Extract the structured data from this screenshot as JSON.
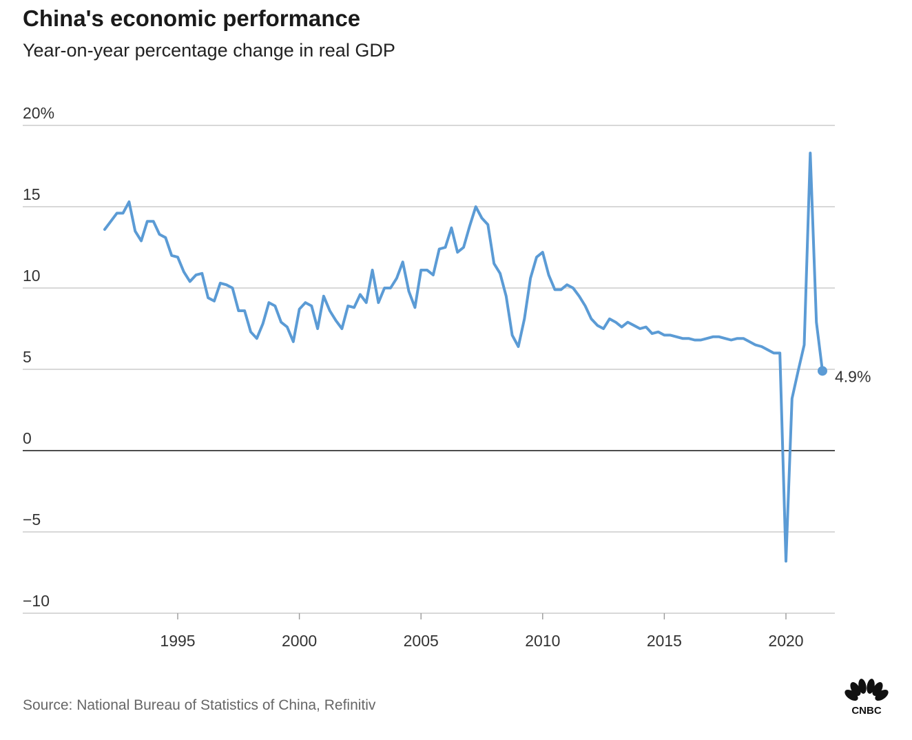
{
  "title": "China's economic performance",
  "subtitle": "Year-on-year percentage change in real GDP",
  "source": "Source: National Bureau of Statistics of China, Refinitiv",
  "logo_text": "CNBC",
  "colors": {
    "line": "#5b9bd5",
    "grid": "#cccccc",
    "zero_line": "#111111"
  },
  "chart_data": {
    "type": "line",
    "title": "China's economic performance",
    "subtitle": "Year-on-year percentage change in real GDP",
    "xlabel": "",
    "ylabel": "",
    "ylim": [
      -10,
      20
    ],
    "y_ticks": [
      {
        "value": 20,
        "label": "20%"
      },
      {
        "value": 15,
        "label": "15"
      },
      {
        "value": 10,
        "label": "10"
      },
      {
        "value": 5,
        "label": "5"
      },
      {
        "value": 0,
        "label": "0"
      },
      {
        "value": -5,
        "label": "−5"
      },
      {
        "value": -10,
        "label": "−10"
      }
    ],
    "x_ticks": [
      {
        "value": 1995,
        "label": "1995"
      },
      {
        "value": 2000,
        "label": "2000"
      },
      {
        "value": 2005,
        "label": "2005"
      },
      {
        "value": 2010,
        "label": "2010"
      },
      {
        "value": 2015,
        "label": "2015"
      },
      {
        "value": 2020,
        "label": "2020"
      }
    ],
    "grid": true,
    "frequency": "quarterly",
    "start": "1992 Q1",
    "end": "2021 Q3",
    "series": [
      {
        "values": [
          13.6,
          14.1,
          14.6,
          14.6,
          15.3,
          13.5,
          12.9,
          14.1,
          14.1,
          13.3,
          13.1,
          12.0,
          11.9,
          11.0,
          10.4,
          10.8,
          10.9,
          9.4,
          9.2,
          10.3,
          10.2,
          10.0,
          8.6,
          8.6,
          7.3,
          6.9,
          7.8,
          9.1,
          8.9,
          7.9,
          7.6,
          6.7,
          8.7,
          9.1,
          8.9,
          7.5,
          9.5,
          8.6,
          8.0,
          7.5,
          8.9,
          8.8,
          9.6,
          9.1,
          11.1,
          9.1,
          10.0,
          10.0,
          10.6,
          11.6,
          9.8,
          8.8,
          11.1,
          11.1,
          10.8,
          12.4,
          12.5,
          13.7,
          12.2,
          12.5,
          13.8,
          15.0,
          14.3,
          13.9,
          11.5,
          10.9,
          9.5,
          7.1,
          6.4,
          8.1,
          10.6,
          11.9,
          12.2,
          10.8,
          9.9,
          9.9,
          10.2,
          10.0,
          9.5,
          8.9,
          8.1,
          7.7,
          7.5,
          8.1,
          7.9,
          7.6,
          7.9,
          7.7,
          7.5,
          7.6,
          7.2,
          7.3,
          7.1,
          7.1,
          7.0,
          6.9,
          6.9,
          6.8,
          6.8,
          6.9,
          7.0,
          7.0,
          6.9,
          6.8,
          6.9,
          6.9,
          6.7,
          6.5,
          6.4,
          6.2,
          6.0,
          6.0,
          -6.8,
          3.2,
          4.9,
          6.5,
          18.3,
          7.9,
          4.9
        ]
      }
    ],
    "annotations": [
      {
        "label": "4.9%",
        "target": "last point"
      }
    ]
  }
}
